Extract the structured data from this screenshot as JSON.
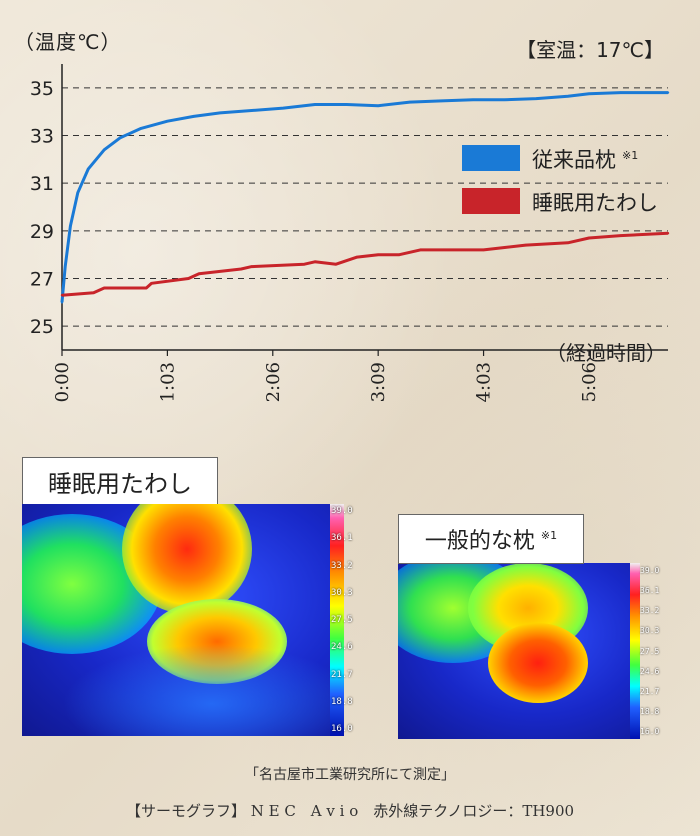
{
  "header": {
    "y_unit": "（温度℃）",
    "room_temp": "【室温：17℃】"
  },
  "chart_data": {
    "type": "line",
    "ylabel": "（温度℃）",
    "xlabel": "（経過時間）",
    "annotation": "【室温：17℃】",
    "ylim": [
      24,
      36
    ],
    "yticks": [
      25,
      27,
      29,
      31,
      33,
      35
    ],
    "xlim": [
      0,
      5.75
    ],
    "xtick_labels": [
      "0:00",
      "1:03",
      "2:06",
      "3:09",
      "4:03",
      "5:06"
    ],
    "xtick_values": [
      0,
      1,
      2,
      3,
      4,
      5
    ],
    "grid": "horizontal dashed",
    "legend_position": "right",
    "series": [
      {
        "name": "従来品枕",
        "note": "※1",
        "color": "#1a7ad6",
        "x": [
          0,
          0.03,
          0.08,
          0.15,
          0.25,
          0.4,
          0.55,
          0.75,
          1.0,
          1.25,
          1.5,
          1.8,
          2.1,
          2.4,
          2.7,
          3.0,
          3.3,
          3.6,
          3.9,
          4.2,
          4.5,
          4.8,
          5.0,
          5.3,
          5.75
        ],
        "values": [
          26.0,
          27.5,
          29.2,
          30.6,
          31.6,
          32.4,
          32.9,
          33.3,
          33.6,
          33.8,
          33.95,
          34.05,
          34.15,
          34.3,
          34.3,
          34.25,
          34.4,
          34.45,
          34.5,
          34.5,
          34.55,
          34.65,
          34.75,
          34.8,
          34.8
        ]
      },
      {
        "name": "睡眠用たわし",
        "note": "",
        "color": "#c8242a",
        "x": [
          0,
          0.3,
          0.4,
          0.8,
          0.85,
          1.2,
          1.3,
          1.7,
          1.8,
          2.3,
          2.4,
          2.6,
          2.8,
          3.0,
          3.2,
          3.4,
          4.0,
          4.2,
          4.4,
          4.8,
          5.0,
          5.3,
          5.75
        ],
        "values": [
          26.3,
          26.4,
          26.6,
          26.6,
          26.8,
          27.0,
          27.2,
          27.4,
          27.5,
          27.6,
          27.7,
          27.6,
          27.9,
          28.0,
          28.0,
          28.2,
          28.2,
          28.3,
          28.4,
          28.5,
          28.7,
          28.8,
          28.9
        ]
      }
    ]
  },
  "thermo_images": [
    {
      "tag": "睡眠用たわし",
      "note": "",
      "scale_labels": [
        "39.0",
        "36.1",
        "33.2",
        "30.3",
        "27.5",
        "24.6",
        "21.7",
        "18.8",
        "16.0"
      ]
    },
    {
      "tag": "一般的な枕",
      "note": "※1",
      "scale_labels": [
        "39.0",
        "36.1",
        "33.2",
        "30.3",
        "27.5",
        "24.6",
        "21.7",
        "18.8",
        "16.0"
      ]
    }
  ],
  "footer": {
    "measured_by": "「名古屋市工業研究所にて測定」",
    "thermograph": "【サーモグラフ】 N E C　A v i o　赤外線テクノロジー：TH900"
  }
}
